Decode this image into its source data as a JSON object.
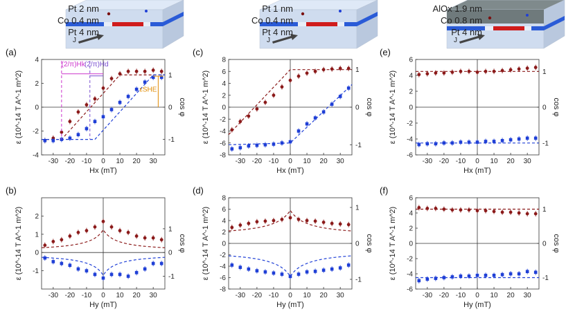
{
  "samples": [
    {
      "layers": [
        "Pt 2 nm",
        "Co 0.4 nm",
        "Pt 4 nm"
      ],
      "top_color": "#e0241c",
      "current_label": "J"
    },
    {
      "layers": [
        "Pt 1 nm",
        "Co 0.4 nm",
        "Pt 4 nm"
      ],
      "top_color": "#e0241c",
      "current_label": "J"
    },
    {
      "layers": [
        "AlOx 1.9 nm",
        "Co 0.8 nm",
        "Pt 4 nm"
      ],
      "top_color": "#e0241c",
      "current_label": "J"
    }
  ],
  "colors": {
    "up": "#8b1a1a",
    "down": "#1f3fd6",
    "hx_marker": "#cc33cc",
    "hx2_marker": "#7a4fd0",
    "she_marker": "#e08a00"
  },
  "chart_data": [
    {
      "panel": "(a)",
      "type": "scatter",
      "xlabel": "Hx (mT)",
      "ylabel": "ε (10^-14 T A^-1 m^2)",
      "y2label": "cos φ",
      "xlim": [
        -37,
        37
      ],
      "ylim": [
        -4,
        4
      ],
      "y2ticks": [
        "1",
        "0",
        "-1"
      ],
      "x": [
        -35,
        -30,
        -25,
        -20,
        -15,
        -10,
        -5,
        0,
        5,
        10,
        15,
        20,
        25,
        30,
        35
      ],
      "series": [
        {
          "values": [
            -2.8,
            -2.6,
            -2.1,
            -1.2,
            -0.4,
            0.2,
            0.7,
            1.6,
            2.4,
            2.8,
            3.0,
            3.0,
            3.0,
            3.1,
            3.0
          ]
        },
        {
          "values": [
            -2.8,
            -2.8,
            -2.7,
            -2.6,
            -2.3,
            -1.8,
            -1.2,
            -0.8,
            -0.2,
            0.4,
            0.9,
            1.5,
            2.1,
            2.5,
            2.5
          ]
        }
      ],
      "annotations": [
        "(2/π)Hk",
        "(2/π)Hd",
        "εSHE"
      ]
    },
    {
      "panel": "(b)",
      "type": "scatter",
      "xlabel": "Hy (mT)",
      "ylabel": "ε (10^-14 T A^-1 m^2)",
      "y2label": "cos φ",
      "xlim": [
        -37,
        37
      ],
      "ylim": [
        -2,
        3
      ],
      "y2ticks": [
        "1",
        "0",
        "-1"
      ],
      "x": [
        -35,
        -30,
        -25,
        -20,
        -15,
        -10,
        -5,
        0,
        5,
        10,
        15,
        20,
        25,
        30,
        35
      ],
      "series": [
        {
          "values": [
            0.4,
            0.6,
            0.7,
            0.9,
            1.1,
            1.2,
            1.4,
            1.7,
            1.4,
            1.2,
            1.1,
            0.9,
            0.8,
            0.8,
            0.7
          ]
        },
        {
          "values": [
            -0.3,
            -0.5,
            -0.6,
            -0.7,
            -0.9,
            -1.0,
            -1.2,
            -1.4,
            -1.2,
            -1.2,
            -1.3,
            -1.1,
            -0.9,
            -0.6,
            -0.6
          ]
        }
      ]
    },
    {
      "panel": "(c)",
      "type": "scatter",
      "xlabel": "Hx (mT)",
      "ylabel": "ε (10^-14 T A^-1 m^2)",
      "y2label": "cos φ",
      "xlim": [
        -37,
        37
      ],
      "ylim": [
        -8,
        8
      ],
      "y2ticks": [
        "1",
        "0",
        "-1"
      ],
      "x": [
        -35,
        -30,
        -25,
        -20,
        -15,
        -10,
        -5,
        0,
        5,
        10,
        15,
        20,
        25,
        30,
        35
      ],
      "series": [
        {
          "values": [
            -3.8,
            -2.4,
            -1.5,
            -0.3,
            0.8,
            2.0,
            3.4,
            4.5,
            5.2,
            5.7,
            6.0,
            6.3,
            6.4,
            6.5,
            6.5
          ]
        },
        {
          "values": [
            -7.0,
            -6.8,
            -6.5,
            -6.4,
            -6.3,
            -6.2,
            -6.0,
            -5.8,
            -4.0,
            -2.8,
            -1.8,
            -0.8,
            0.5,
            1.8,
            3.2
          ]
        }
      ]
    },
    {
      "panel": "(d)",
      "type": "scatter",
      "xlabel": "Hy (mT)",
      "ylabel": "ε (10^-14 T A^-1 m^2)",
      "y2label": "cos φ",
      "xlim": [
        -37,
        37
      ],
      "ylim": [
        -8,
        8
      ],
      "y2ticks": [
        "1",
        "0",
        "-1"
      ],
      "x": [
        -35,
        -30,
        -25,
        -20,
        -15,
        -10,
        -5,
        0,
        5,
        10,
        15,
        20,
        25,
        30,
        35
      ],
      "series": [
        {
          "values": [
            2.8,
            3.2,
            3.5,
            3.8,
            3.9,
            4.0,
            4.2,
            4.5,
            4.2,
            4.0,
            3.9,
            3.7,
            3.5,
            3.4,
            3.3
          ]
        },
        {
          "values": [
            -3.8,
            -4.2,
            -4.5,
            -4.8,
            -5.0,
            -5.2,
            -5.4,
            -5.8,
            -5.4,
            -5.0,
            -4.9,
            -4.7,
            -4.5,
            -4.3,
            -3.8
          ]
        }
      ]
    },
    {
      "panel": "(e)",
      "type": "scatter",
      "xlabel": "Hx (mT)",
      "ylabel": "ε (10^-14 T A^-1 m^2)",
      "y2label": "cos φ",
      "xlim": [
        -37,
        37
      ],
      "ylim": [
        -6,
        6
      ],
      "y2ticks": [
        "1",
        "0",
        "-1"
      ],
      "x": [
        -35,
        -30,
        -25,
        -20,
        -15,
        -10,
        -5,
        0,
        5,
        10,
        15,
        20,
        25,
        30,
        35
      ],
      "series": [
        {
          "values": [
            4.1,
            4.2,
            4.3,
            4.3,
            4.4,
            4.5,
            4.5,
            4.4,
            4.5,
            4.5,
            4.6,
            4.7,
            4.8,
            4.9,
            5.0
          ]
        },
        {
          "values": [
            -4.7,
            -4.6,
            -4.6,
            -4.5,
            -4.5,
            -4.4,
            -4.4,
            -4.4,
            -4.3,
            -4.3,
            -4.2,
            -4.1,
            -4.0,
            -3.9,
            -3.9
          ]
        }
      ]
    },
    {
      "panel": "(f)",
      "type": "scatter",
      "xlabel": "Hy (mT)",
      "ylabel": "ε (10^-14 T A^-1 m^2)",
      "y2label": "cos φ",
      "xlim": [
        -37,
        37
      ],
      "ylim": [
        -6,
        6
      ],
      "y2ticks": [
        "1",
        "0",
        "-1"
      ],
      "x": [
        -35,
        -30,
        -25,
        -20,
        -15,
        -10,
        -5,
        0,
        5,
        10,
        15,
        20,
        25,
        30,
        35
      ],
      "series": [
        {
          "values": [
            4.7,
            4.6,
            4.6,
            4.5,
            4.4,
            4.4,
            4.4,
            4.3,
            4.3,
            4.2,
            4.1,
            4.1,
            4.0,
            3.9,
            3.9
          ]
        },
        {
          "values": [
            -4.9,
            -4.7,
            -4.6,
            -4.5,
            -4.4,
            -4.3,
            -4.3,
            -4.2,
            -4.2,
            -4.2,
            -4.1,
            -4.0,
            -4.0,
            -3.7,
            -3.8
          ]
        }
      ]
    }
  ]
}
